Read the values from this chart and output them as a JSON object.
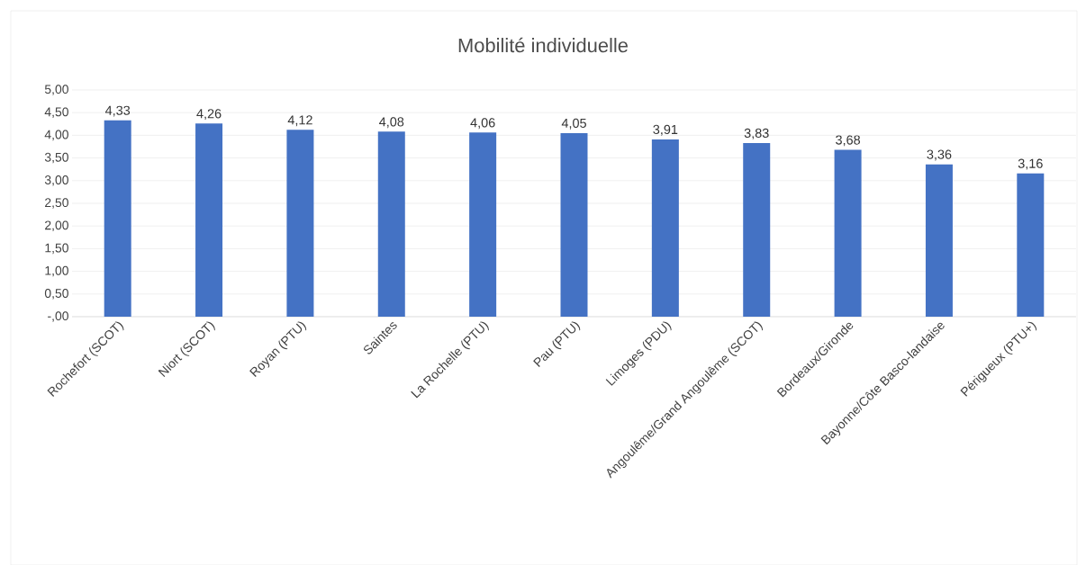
{
  "chart_data": {
    "type": "bar",
    "title": "Mobilité individuelle",
    "categories": [
      "Rochefort (SCOT)",
      "Niort (SCOT)",
      "Royan (PTU)",
      "Saintes",
      "La Rochelle (PTU)",
      "Pau (PTU)",
      "Limoges (PDU)",
      "Angoulême/Grand Angoulême (SCOT)",
      "Bordeaux/Gironde",
      "Bayonne/Côte Basco-landaise",
      "Périgueux (PTU+)"
    ],
    "values": [
      4.33,
      4.26,
      4.12,
      4.08,
      4.06,
      4.05,
      3.91,
      3.83,
      3.68,
      3.36,
      3.16
    ],
    "value_labels": [
      "4,33",
      "4,26",
      "4,12",
      "4,08",
      "4,06",
      "4,05",
      "3,91",
      "3,83",
      "3,68",
      "3,36",
      "3,16"
    ],
    "color": "#4472c4",
    "ylim": [
      0,
      5
    ],
    "yticks": [
      {
        "value": 0,
        "label": "-,00"
      },
      {
        "value": 0.5,
        "label": "0,50"
      },
      {
        "value": 1,
        "label": "1,00"
      },
      {
        "value": 1.5,
        "label": "1,50"
      },
      {
        "value": 2,
        "label": "2,00"
      },
      {
        "value": 2.5,
        "label": "2,50"
      },
      {
        "value": 3,
        "label": "3,00"
      },
      {
        "value": 3.5,
        "label": "3,50"
      },
      {
        "value": 4,
        "label": "4,00"
      },
      {
        "value": 4.5,
        "label": "4,50"
      },
      {
        "value": 5,
        "label": "5,00"
      }
    ],
    "grid": "y"
  }
}
